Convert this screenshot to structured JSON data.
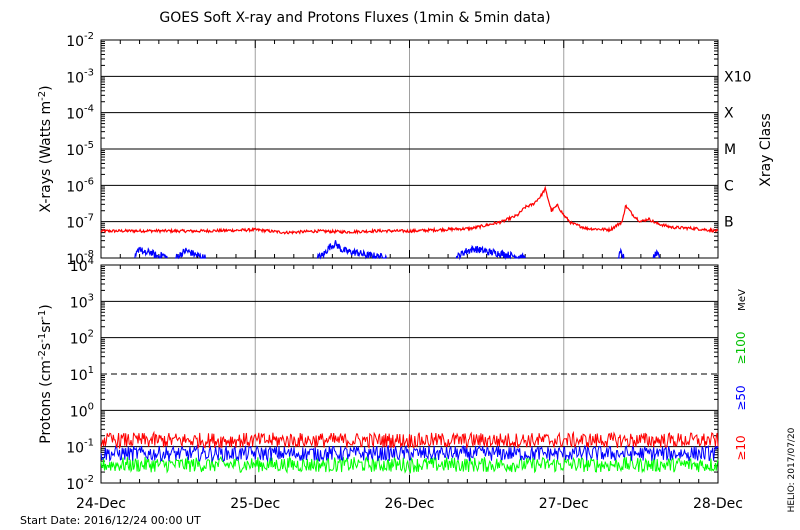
{
  "title": "GOES Soft X-ray and Protons Fluxes   (1min & 5min data)",
  "footer": {
    "start_date": "Start Date: 2016/12/24 00:00 UT",
    "credit": "HELIO: 2017/07/20"
  },
  "colors": {
    "red": "#ff0000",
    "blue": "#0000ff",
    "green": "#00ff00",
    "black": "#000000",
    "vgrid": "#a0a0a0"
  },
  "chart_data": [
    {
      "type": "line",
      "panel": "xray",
      "ylabel_base": "X-rays (Watts m",
      "ylabel_sup": "-2",
      "ylabel_end": ")",
      "yscale": "log",
      "ylim_exp": [
        -8,
        -2
      ],
      "yticks": [
        {
          "base": "10",
          "exp": "-2"
        },
        {
          "base": "10",
          "exp": "-3"
        },
        {
          "base": "10",
          "exp": "-4"
        },
        {
          "base": "10",
          "exp": "-5"
        },
        {
          "base": "10",
          "exp": "-6"
        },
        {
          "base": "10",
          "exp": "-7"
        },
        {
          "base": "10",
          "exp": "-8"
        }
      ],
      "right_axis_label": "Xray Class",
      "class_labels": [
        {
          "label": "X10",
          "exp": -3
        },
        {
          "label": "X",
          "exp": -4
        },
        {
          "label": "M",
          "exp": -5
        },
        {
          "label": "C",
          "exp": -6
        },
        {
          "label": "B",
          "exp": -7
        }
      ],
      "series": [
        {
          "color": "red",
          "points": [
            [
              0,
              5.5e-08
            ],
            [
              0.3,
              5.6e-08
            ],
            [
              0.6,
              5.5e-08
            ],
            [
              0.9,
              5.8e-08
            ],
            [
              1.0,
              6e-08
            ],
            [
              1.2,
              5e-08
            ],
            [
              1.4,
              5.5e-08
            ],
            [
              1.6,
              5.2e-08
            ],
            [
              1.8,
              5.6e-08
            ],
            [
              2.0,
              5.5e-08
            ],
            [
              2.2,
              6e-08
            ],
            [
              2.4,
              6.5e-08
            ],
            [
              2.5,
              8e-08
            ],
            [
              2.6,
              1e-07
            ],
            [
              2.7,
              1.5e-07
            ],
            [
              2.75,
              2.5e-07
            ],
            [
              2.8,
              3e-07
            ],
            [
              2.85,
              5e-07
            ],
            [
              2.88,
              8e-07
            ],
            [
              2.92,
              2e-07
            ],
            [
              2.96,
              2.8e-07
            ],
            [
              3.0,
              1.5e-07
            ],
            [
              3.05,
              9e-08
            ],
            [
              3.15,
              6.5e-08
            ],
            [
              3.3,
              6e-08
            ],
            [
              3.38,
              1e-07
            ],
            [
              3.4,
              2.8e-07
            ],
            [
              3.45,
              1.5e-07
            ],
            [
              3.5,
              1e-07
            ],
            [
              3.55,
              1.2e-07
            ],
            [
              3.6,
              9e-08
            ],
            [
              3.7,
              7e-08
            ],
            [
              3.85,
              6.5e-08
            ],
            [
              4.0,
              5.5e-08
            ]
          ]
        },
        {
          "color": "blue",
          "segments": [
            [
              [
                0.22,
                1e-08
              ],
              [
                0.25,
                2e-08
              ],
              [
                0.28,
                1.3e-08
              ],
              [
                0.32,
                1.5e-08
              ],
              [
                0.36,
                1.1e-08
              ],
              [
                0.4,
                1.2e-08
              ],
              [
                0.43,
                1e-08
              ]
            ],
            [
              [
                0.48,
                1e-08
              ],
              [
                0.52,
                1.3e-08
              ],
              [
                0.55,
                1.6e-08
              ],
              [
                0.6,
                1.3e-08
              ],
              [
                0.64,
                1.1e-08
              ],
              [
                0.68,
                1e-08
              ]
            ],
            [
              [
                1.4,
                1e-08
              ],
              [
                1.44,
                1.2e-08
              ],
              [
                1.48,
                2e-08
              ],
              [
                1.52,
                2.5e-08
              ],
              [
                1.56,
                1.7e-08
              ],
              [
                1.6,
                1.5e-08
              ],
              [
                1.66,
                1.4e-08
              ],
              [
                1.72,
                1.2e-08
              ],
              [
                1.8,
                1.1e-08
              ],
              [
                1.85,
                1e-08
              ]
            ],
            [
              [
                2.3,
                1e-08
              ],
              [
                2.36,
                1.5e-08
              ],
              [
                2.42,
                1.8e-08
              ],
              [
                2.5,
                1.5e-08
              ],
              [
                2.6,
                1.3e-08
              ],
              [
                2.7,
                1.1e-08
              ],
              [
                2.75,
                1e-08
              ]
            ],
            [
              [
                3.35,
                1e-08
              ],
              [
                3.37,
                1.4e-08
              ],
              [
                3.39,
                1e-08
              ]
            ],
            [
              [
                3.58,
                1e-08
              ],
              [
                3.6,
                1.3e-08
              ],
              [
                3.62,
                1e-08
              ]
            ]
          ]
        }
      ]
    },
    {
      "type": "line",
      "panel": "protons",
      "ylabel_base": "Protons (cm",
      "ylabel_sup1": "-2",
      "ylabel_mid1": "s",
      "ylabel_sup2": "-1",
      "ylabel_mid2": "sr",
      "ylabel_sup3": "-1",
      "ylabel_end": ")",
      "yscale": "log",
      "ylim_exp": [
        -2,
        4
      ],
      "yticks": [
        {
          "base": "10",
          "exp": "4"
        },
        {
          "base": "10",
          "exp": "3"
        },
        {
          "base": "10",
          "exp": "2"
        },
        {
          "base": "10",
          "exp": "1"
        },
        {
          "base": "10",
          "exp": "0"
        },
        {
          "base": "10",
          "exp": "-1"
        },
        {
          "base": "10",
          "exp": "-2"
        }
      ],
      "threshold_dashed": 10,
      "right_labels": {
        "mev": "MeV",
        "e100": "≥100",
        "e50": "≥50",
        "e10": "≥10"
      },
      "series": [
        {
          "color": "red",
          "name": "≥10",
          "mean": 0.15
        },
        {
          "color": "blue",
          "name": "≥50",
          "mean": 0.065
        },
        {
          "color": "green",
          "name": "≥100",
          "mean": 0.032
        }
      ]
    }
  ],
  "x_axis": {
    "range_days": [
      0,
      4
    ],
    "ticks": [
      {
        "day": 0,
        "label": "24-Dec"
      },
      {
        "day": 1,
        "label": "25-Dec"
      },
      {
        "day": 2,
        "label": "26-Dec"
      },
      {
        "day": 3,
        "label": "27-Dec"
      },
      {
        "day": 4,
        "label": "28-Dec"
      }
    ]
  }
}
